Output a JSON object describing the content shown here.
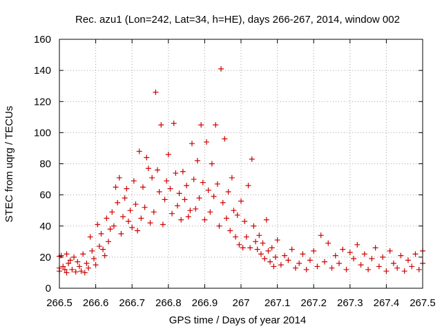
{
  "chart_data": {
    "type": "scatter",
    "title": "Rec. azu1 (Lon=242, Lat=34, h=HE), days 266-267, 2014, window 002",
    "xlabel": "GPS time / Days of year 2014",
    "ylabel": "STEC from uqrg / TECUs",
    "xlim": [
      266.5,
      267.5
    ],
    "ylim": [
      0,
      160
    ],
    "xticks": [
      266.5,
      266.6,
      266.7,
      266.8,
      266.9,
      267.0,
      267.1,
      267.2,
      267.3,
      267.4,
      267.5
    ],
    "xtick_labels": [
      "266.5",
      "266.6",
      "266.7",
      "266.8",
      "266.9",
      "267",
      "267.1",
      "267.2",
      "267.3",
      "267.4",
      "267.5"
    ],
    "yticks": [
      0,
      20,
      40,
      60,
      80,
      100,
      120,
      140,
      160
    ],
    "ytick_labels": [
      "0",
      "20",
      "40",
      "60",
      "80",
      "100",
      "120",
      "140",
      "160"
    ],
    "grid": true,
    "marker": "+",
    "color": "#cc0000",
    "series": [
      {
        "name": "STEC",
        "points": [
          [
            266.5,
            20.5
          ],
          [
            266.5,
            13
          ],
          [
            266.5,
            11
          ],
          [
            266.505,
            21
          ],
          [
            266.51,
            14
          ],
          [
            266.515,
            12
          ],
          [
            266.52,
            22
          ],
          [
            266.52,
            10
          ],
          [
            266.525,
            16
          ],
          [
            266.53,
            18
          ],
          [
            266.535,
            12
          ],
          [
            266.54,
            20
          ],
          [
            266.545,
            10.5
          ],
          [
            266.55,
            17
          ],
          [
            266.555,
            14
          ],
          [
            266.56,
            11
          ],
          [
            266.565,
            22
          ],
          [
            266.57,
            10
          ],
          [
            266.575,
            16
          ],
          [
            266.58,
            13
          ],
          [
            266.585,
            33
          ],
          [
            266.59,
            24
          ],
          [
            266.595,
            19
          ],
          [
            266.6,
            15
          ],
          [
            266.605,
            41
          ],
          [
            266.61,
            27
          ],
          [
            266.615,
            35
          ],
          [
            266.62,
            25
          ],
          [
            266.625,
            21
          ],
          [
            266.63,
            45
          ],
          [
            266.635,
            30
          ],
          [
            266.64,
            38
          ],
          [
            266.645,
            49
          ],
          [
            266.65,
            40
          ],
          [
            266.655,
            65
          ],
          [
            266.66,
            55
          ],
          [
            266.665,
            71
          ],
          [
            266.67,
            35
          ],
          [
            266.675,
            46
          ],
          [
            266.68,
            58
          ],
          [
            266.685,
            64
          ],
          [
            266.69,
            43
          ],
          [
            266.695,
            50
          ],
          [
            266.7,
            39
          ],
          [
            266.705,
            69
          ],
          [
            266.71,
            54
          ],
          [
            266.715,
            37
          ],
          [
            266.72,
            88
          ],
          [
            266.725,
            45
          ],
          [
            266.73,
            65
          ],
          [
            266.735,
            52
          ],
          [
            266.74,
            84
          ],
          [
            266.745,
            77
          ],
          [
            266.75,
            42
          ],
          [
            266.755,
            71
          ],
          [
            266.76,
            49
          ],
          [
            266.765,
            126
          ],
          [
            266.77,
            76
          ],
          [
            266.775,
            62
          ],
          [
            266.78,
            105
          ],
          [
            266.785,
            41
          ],
          [
            266.79,
            57
          ],
          [
            266.795,
            69
          ],
          [
            266.8,
            86
          ],
          [
            266.805,
            64
          ],
          [
            266.81,
            48
          ],
          [
            266.815,
            106
          ],
          [
            266.82,
            74
          ],
          [
            266.825,
            53
          ],
          [
            266.83,
            61
          ],
          [
            266.835,
            44
          ],
          [
            266.84,
            75
          ],
          [
            266.845,
            57
          ],
          [
            266.85,
            66
          ],
          [
            266.855,
            46
          ],
          [
            266.86,
            50
          ],
          [
            266.865,
            93
          ],
          [
            266.87,
            70
          ],
          [
            266.875,
            51
          ],
          [
            266.88,
            82
          ],
          [
            266.885,
            58
          ],
          [
            266.89,
            105
          ],
          [
            266.895,
            68
          ],
          [
            266.9,
            44
          ],
          [
            266.905,
            94
          ],
          [
            266.91,
            63
          ],
          [
            266.915,
            49
          ],
          [
            266.92,
            80
          ],
          [
            266.925,
            59
          ],
          [
            266.93,
            105
          ],
          [
            266.935,
            67
          ],
          [
            266.94,
            40
          ],
          [
            266.945,
            141
          ],
          [
            266.95,
            55
          ],
          [
            266.955,
            96
          ],
          [
            266.96,
            45
          ],
          [
            266.965,
            62
          ],
          [
            266.97,
            37
          ],
          [
            266.975,
            71
          ],
          [
            266.98,
            50
          ],
          [
            266.985,
            33
          ],
          [
            266.99,
            47
          ],
          [
            266.995,
            28
          ],
          [
            267.0,
            56
          ],
          [
            267.005,
            26
          ],
          [
            267.01,
            43
          ],
          [
            267.015,
            33
          ],
          [
            267.02,
            66
          ],
          [
            267.025,
            26
          ],
          [
            267.03,
            83
          ],
          [
            267.035,
            40
          ],
          [
            267.04,
            30
          ],
          [
            267.045,
            25
          ],
          [
            267.05,
            34
          ],
          [
            267.055,
            22
          ],
          [
            267.06,
            29
          ],
          [
            267.065,
            19
          ],
          [
            267.07,
            44
          ],
          [
            267.075,
            24
          ],
          [
            267.08,
            17
          ],
          [
            267.085,
            26
          ],
          [
            267.09,
            14
          ],
          [
            267.095,
            20
          ],
          [
            267.1,
            31
          ],
          [
            267.11,
            15
          ],
          [
            267.12,
            21
          ],
          [
            267.13,
            18
          ],
          [
            267.14,
            25
          ],
          [
            267.15,
            13
          ],
          [
            267.16,
            16
          ],
          [
            267.17,
            22
          ],
          [
            267.18,
            12
          ],
          [
            267.19,
            18
          ],
          [
            267.2,
            24
          ],
          [
            267.21,
            14
          ],
          [
            267.22,
            34
          ],
          [
            267.23,
            17
          ],
          [
            267.24,
            29
          ],
          [
            267.25,
            13
          ],
          [
            267.26,
            21
          ],
          [
            267.27,
            16
          ],
          [
            267.28,
            25
          ],
          [
            267.29,
            12
          ],
          [
            267.3,
            23
          ],
          [
            267.31,
            19
          ],
          [
            267.32,
            28
          ],
          [
            267.33,
            15
          ],
          [
            267.34,
            22
          ],
          [
            267.35,
            12
          ],
          [
            267.36,
            19
          ],
          [
            267.37,
            26
          ],
          [
            267.38,
            14
          ],
          [
            267.39,
            20
          ],
          [
            267.4,
            11
          ],
          [
            267.41,
            24
          ],
          [
            267.42,
            16
          ],
          [
            267.43,
            13
          ],
          [
            267.44,
            21
          ],
          [
            267.45,
            11
          ],
          [
            267.46,
            18
          ],
          [
            267.47,
            14
          ],
          [
            267.48,
            22
          ],
          [
            267.49,
            12
          ],
          [
            267.5,
            24
          ],
          [
            267.5,
            16
          ]
        ]
      }
    ]
  }
}
